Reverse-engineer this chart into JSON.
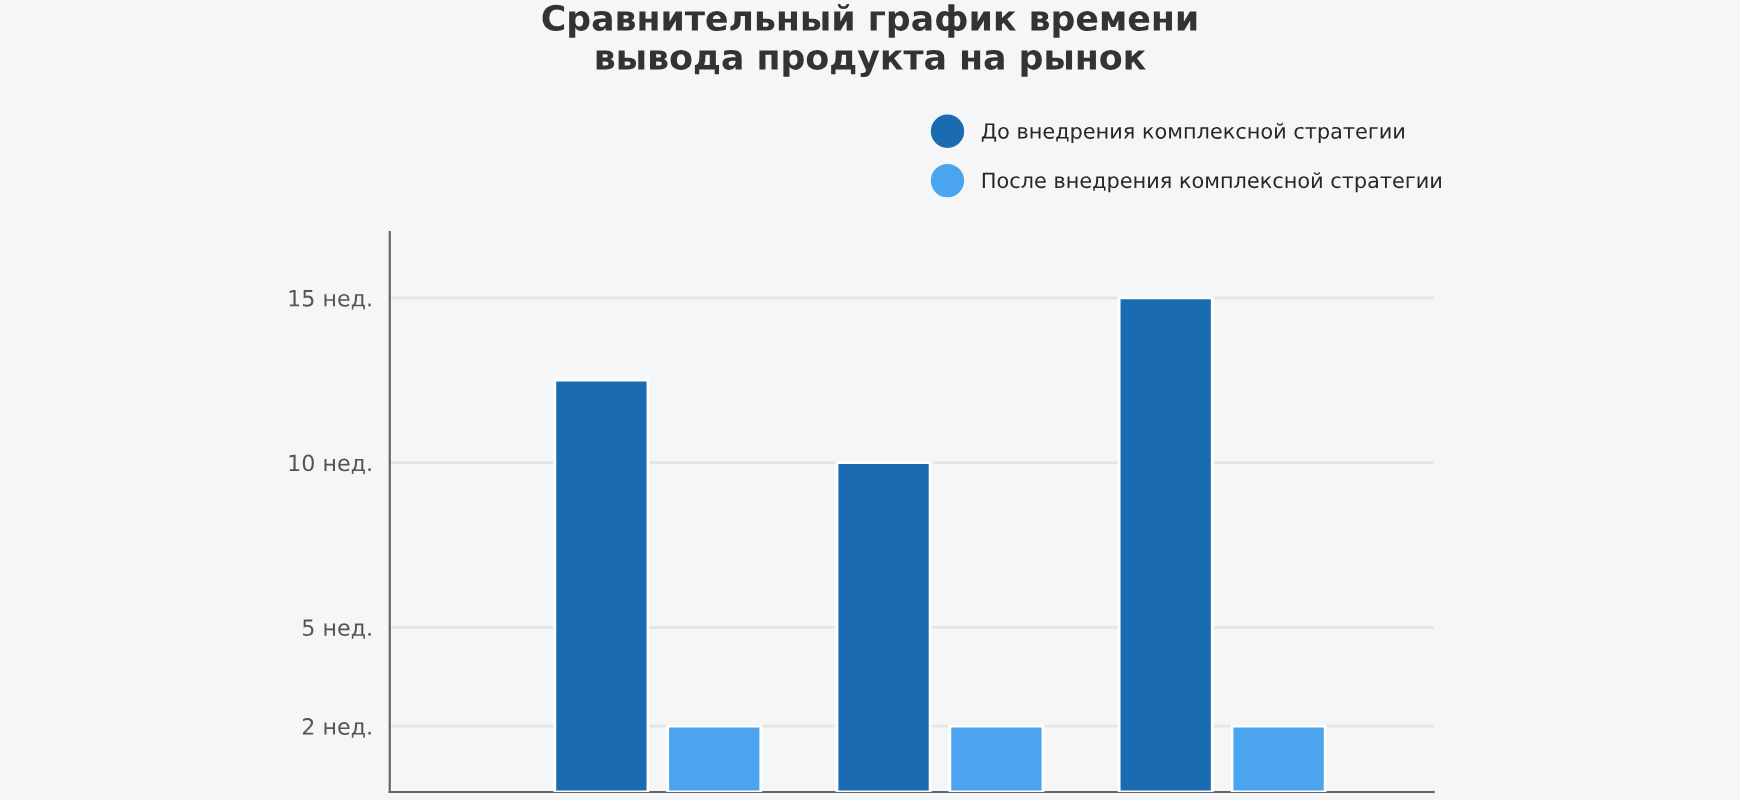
{
  "chart_data": {
    "type": "bar",
    "title": "Сравнительный график времени\nвывода продукта на рынок",
    "categories": [
      null,
      null,
      null
    ],
    "series": [
      {
        "name": "До внедрения комплексной стратегии",
        "color": "#1a6bb0",
        "values": [
          12.5,
          10,
          15
        ]
      },
      {
        "name": "После внедрения комплексной стратегии",
        "color": "#4ba5ee",
        "values": [
          2,
          2,
          2
        ]
      }
    ],
    "ylim": [
      0,
      17
    ],
    "yticks": [
      {
        "value": 2,
        "label": "2 нед."
      },
      {
        "value": 5,
        "label": "5 нед."
      },
      {
        "value": 10,
        "label": "10 нед."
      },
      {
        "value": 15,
        "label": "15 нед."
      }
    ],
    "grid": "y",
    "legend": "top right"
  }
}
